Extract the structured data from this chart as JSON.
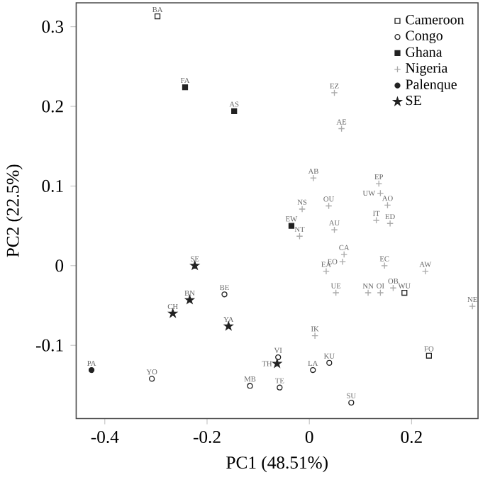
{
  "chart_data": {
    "type": "scatter",
    "xlabel": "PC1 (48.51%)",
    "ylabel": "PC2 (22.5%)",
    "xlim": [
      -0.456,
      0.33
    ],
    "ylim": [
      -0.192,
      0.33
    ],
    "xticks": [
      -0.4,
      -0.2,
      0,
      0.2
    ],
    "yticks": [
      -0.1,
      0,
      0.1,
      0.2,
      0.3
    ],
    "legend": "top right",
    "series": [
      {
        "name": "Cameroon",
        "color": "#222222",
        "marker": "square",
        "x": [
          -0.297,
          0.186,
          0.234
        ],
        "values": [
          0.313,
          -0.034,
          -0.113
        ]
      },
      {
        "name": "Congo",
        "color": "#222222",
        "marker": "circle",
        "x": [
          -0.166,
          -0.308,
          -0.061,
          0.039,
          0.007,
          -0.116,
          -0.058,
          0.082
        ],
        "values": [
          -0.036,
          -0.142,
          -0.115,
          -0.122,
          -0.131,
          -0.151,
          -0.153,
          -0.172
        ]
      },
      {
        "name": "Ghana",
        "color": "#222222",
        "marker": "square",
        "x": [
          -0.243,
          -0.147,
          -0.035
        ],
        "values": [
          0.224,
          0.194,
          0.05
        ]
      },
      {
        "name": "Nigeria",
        "color": "#aaaaaa",
        "marker": "cross",
        "x": [
          0.049,
          0.063,
          0.008,
          0.136,
          0.139,
          0.153,
          -0.014,
          0.038,
          -0.019,
          0.049,
          0.131,
          0.158,
          0.068,
          0.065,
          0.033,
          0.147,
          0.227,
          0.052,
          0.115,
          0.139,
          0.164,
          0.319,
          0.011
        ],
        "values": [
          0.217,
          0.172,
          0.11,
          0.103,
          0.091,
          0.076,
          0.071,
          0.075,
          0.037,
          0.045,
          0.057,
          0.053,
          0.014,
          0.005,
          -0.007,
          0,
          -0.007,
          -0.034,
          -0.034,
          -0.034,
          -0.028,
          -0.051,
          -0.088
        ]
      },
      {
        "name": "Palenque",
        "color": "#222222",
        "marker": "circle",
        "x": [
          -0.426
        ],
        "values": [
          -0.131
        ]
      },
      {
        "name": "SE",
        "color": "#222222",
        "marker": "star",
        "x": [
          -0.224,
          -0.234,
          -0.267,
          -0.158,
          -0.063
        ],
        "values": [
          0,
          -0.043,
          -0.06,
          -0.076,
          -0.123
        ]
      }
    ],
    "annotations": [
      {
        "text": "BA",
        "x": -0.297,
        "y": 0.313
      },
      {
        "text": "WU",
        "x": 0.186,
        "y": -0.034
      },
      {
        "text": "FO",
        "x": 0.234,
        "y": -0.113
      },
      {
        "text": "BE",
        "x": -0.166,
        "y": -0.036
      },
      {
        "text": "YO",
        "x": -0.308,
        "y": -0.142
      },
      {
        "text": "VI",
        "x": -0.061,
        "y": -0.115
      },
      {
        "text": "KU",
        "x": 0.039,
        "y": -0.122
      },
      {
        "text": "LA",
        "x": 0.007,
        "y": -0.131
      },
      {
        "text": "MB",
        "x": -0.116,
        "y": -0.151
      },
      {
        "text": "TE",
        "x": -0.058,
        "y": -0.153
      },
      {
        "text": "SU",
        "x": 0.082,
        "y": -0.172
      },
      {
        "text": "FA",
        "x": -0.243,
        "y": 0.224
      },
      {
        "text": "AS",
        "x": -0.147,
        "y": 0.194
      },
      {
        "text": "EW",
        "x": -0.035,
        "y": 0.05
      },
      {
        "text": "EZ",
        "x": 0.049,
        "y": 0.217
      },
      {
        "text": "AE",
        "x": 0.063,
        "y": 0.172
      },
      {
        "text": "AB",
        "x": 0.008,
        "y": 0.11
      },
      {
        "text": "EP",
        "x": 0.136,
        "y": 0.103
      },
      {
        "text": "UW",
        "x": 0.139,
        "y": 0.091
      },
      {
        "text": "AO",
        "x": 0.153,
        "y": 0.076
      },
      {
        "text": "NS",
        "x": -0.014,
        "y": 0.071
      },
      {
        "text": "OU",
        "x": 0.038,
        "y": 0.075
      },
      {
        "text": "NT",
        "x": -0.019,
        "y": 0.037
      },
      {
        "text": "AU",
        "x": 0.049,
        "y": 0.045
      },
      {
        "text": "IT",
        "x": 0.131,
        "y": 0.057
      },
      {
        "text": "ED",
        "x": 0.158,
        "y": 0.053
      },
      {
        "text": "CA",
        "x": 0.068,
        "y": 0.014
      },
      {
        "text": "EO",
        "x": 0.065,
        "y": 0.005
      },
      {
        "text": "EA",
        "x": 0.033,
        "y": -0.007
      },
      {
        "text": "EC",
        "x": 0.147,
        "y": 0
      },
      {
        "text": "AW",
        "x": 0.227,
        "y": -0.007
      },
      {
        "text": "UE",
        "x": 0.052,
        "y": -0.034
      },
      {
        "text": "NN",
        "x": 0.115,
        "y": -0.034
      },
      {
        "text": "OI",
        "x": 0.139,
        "y": -0.034
      },
      {
        "text": "OB",
        "x": 0.164,
        "y": -0.028
      },
      {
        "text": "NE",
        "x": 0.319,
        "y": -0.051
      },
      {
        "text": "IK",
        "x": 0.011,
        "y": -0.088
      },
      {
        "text": "PA",
        "x": -0.426,
        "y": -0.131
      },
      {
        "text": "SE",
        "x": -0.224,
        "y": 0
      },
      {
        "text": "BN",
        "x": -0.234,
        "y": -0.043
      },
      {
        "text": "CH",
        "x": -0.267,
        "y": -0.06
      },
      {
        "text": "YA",
        "x": -0.158,
        "y": -0.076
      },
      {
        "text": "TH",
        "x": -0.063,
        "y": -0.123
      }
    ]
  }
}
